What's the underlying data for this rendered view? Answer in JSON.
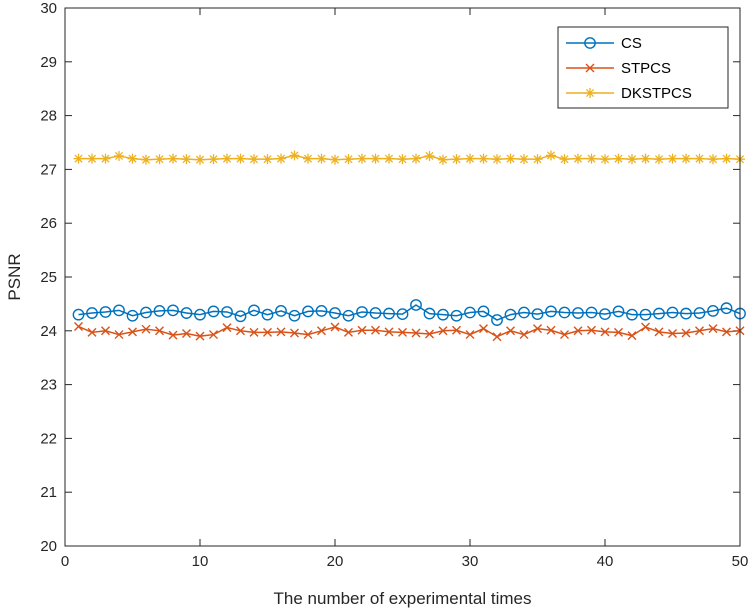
{
  "chart_data": {
    "type": "line",
    "title": "",
    "xlabel": "The number of experimental times",
    "ylabel": "PSNR",
    "xlim": [
      0,
      50
    ],
    "ylim": [
      20,
      30
    ],
    "xticks": [
      0,
      10,
      20,
      30,
      40,
      50
    ],
    "yticks": [
      20,
      21,
      22,
      23,
      24,
      25,
      26,
      27,
      28,
      29,
      30
    ],
    "grid": false,
    "legend_position": "top-right",
    "x": [
      1,
      2,
      3,
      4,
      5,
      6,
      7,
      8,
      9,
      10,
      11,
      12,
      13,
      14,
      15,
      16,
      17,
      18,
      19,
      20,
      21,
      22,
      23,
      24,
      25,
      26,
      27,
      28,
      29,
      30,
      31,
      32,
      33,
      34,
      35,
      36,
      37,
      38,
      39,
      40,
      41,
      42,
      43,
      44,
      45,
      46,
      47,
      48,
      49,
      50
    ],
    "series": [
      {
        "name": "CS",
        "color": "#0072BD",
        "marker": "circle",
        "values": [
          24.3,
          24.33,
          24.35,
          24.38,
          24.28,
          24.34,
          24.37,
          24.38,
          24.33,
          24.3,
          24.36,
          24.35,
          24.27,
          24.38,
          24.3,
          24.37,
          24.28,
          24.36,
          24.37,
          24.33,
          24.28,
          24.35,
          24.33,
          24.32,
          24.31,
          24.48,
          24.32,
          24.3,
          24.28,
          24.34,
          24.36,
          24.2,
          24.3,
          24.34,
          24.31,
          24.36,
          24.34,
          24.33,
          24.34,
          24.31,
          24.36,
          24.3,
          24.3,
          24.32,
          24.34,
          24.32,
          24.33,
          24.37,
          24.42,
          24.32
        ]
      },
      {
        "name": "STPCS",
        "color": "#D95319",
        "marker": "x",
        "values": [
          24.08,
          23.97,
          24.0,
          23.93,
          23.98,
          24.03,
          24.0,
          23.92,
          23.95,
          23.9,
          23.93,
          24.06,
          24.0,
          23.97,
          23.97,
          23.98,
          23.96,
          23.93,
          24.0,
          24.07,
          23.97,
          24.01,
          24.01,
          23.98,
          23.97,
          23.96,
          23.94,
          24.0,
          24.01,
          23.93,
          24.04,
          23.89,
          24.0,
          23.93,
          24.04,
          24.01,
          23.93,
          24.0,
          24.01,
          23.98,
          23.97,
          23.91,
          24.07,
          23.98,
          23.95,
          23.96,
          24.0,
          24.04,
          23.98,
          24.0
        ]
      },
      {
        "name": "DKSTPCS",
        "color": "#EDB120",
        "marker": "asterisk",
        "values": [
          27.2,
          27.2,
          27.2,
          27.25,
          27.2,
          27.18,
          27.19,
          27.2,
          27.19,
          27.18,
          27.19,
          27.2,
          27.2,
          27.19,
          27.19,
          27.2,
          27.26,
          27.2,
          27.2,
          27.18,
          27.19,
          27.2,
          27.2,
          27.2,
          27.19,
          27.2,
          27.25,
          27.18,
          27.19,
          27.2,
          27.2,
          27.19,
          27.2,
          27.19,
          27.19,
          27.26,
          27.19,
          27.2,
          27.2,
          27.19,
          27.2,
          27.19,
          27.2,
          27.19,
          27.2,
          27.2,
          27.2,
          27.19,
          27.2,
          27.19
        ]
      }
    ]
  }
}
